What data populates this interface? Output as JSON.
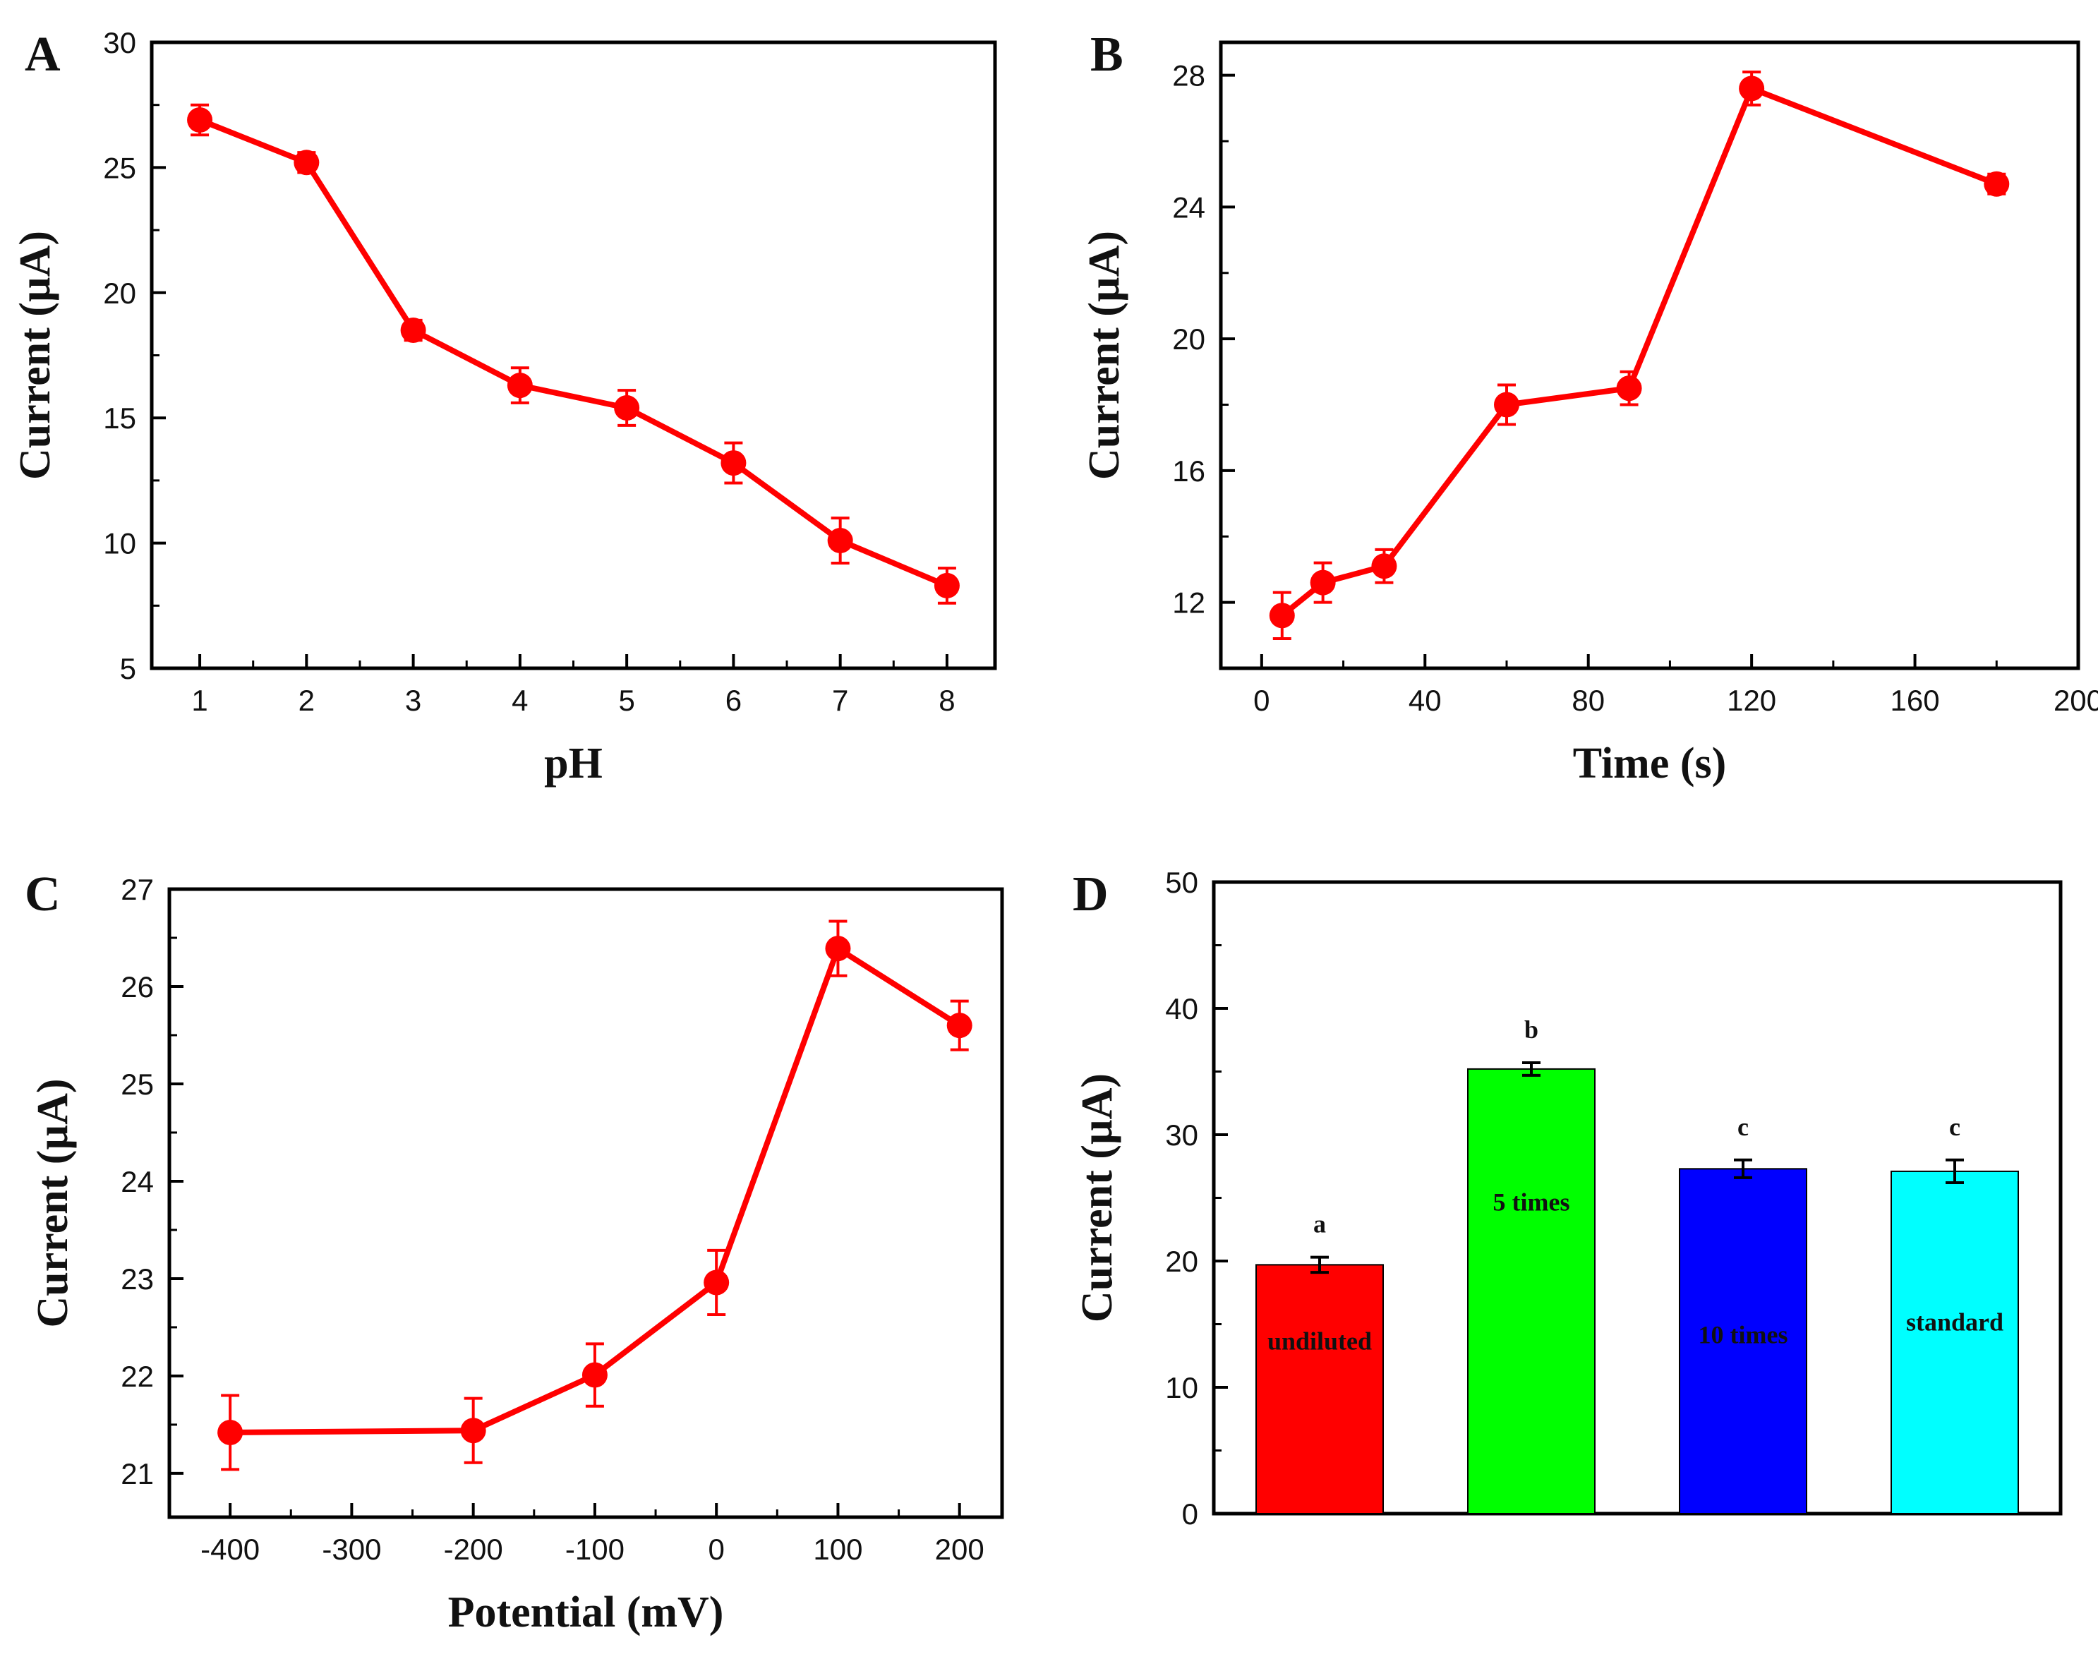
{
  "figure": {
    "colors": {
      "line": "#ff0000",
      "axis": "#000000"
    }
  },
  "chart_data": [
    {
      "id": "A",
      "panel_label": "A",
      "type": "line",
      "xlabel": "pH",
      "ylabel": "Current (µA)",
      "xlim": [
        0.55,
        8.45
      ],
      "ylim": [
        5,
        30
      ],
      "xticks": [
        1,
        2,
        3,
        4,
        5,
        6,
        7,
        8
      ],
      "yticks": [
        5,
        10,
        15,
        20,
        25,
        30
      ],
      "x": [
        1,
        2,
        3,
        4,
        5,
        6,
        7,
        8
      ],
      "y": [
        26.9,
        25.2,
        18.5,
        16.3,
        15.4,
        13.2,
        10.1,
        8.3
      ],
      "err": [
        0.6,
        0.4,
        0.4,
        0.7,
        0.7,
        0.8,
        0.9,
        0.7
      ]
    },
    {
      "id": "B",
      "panel_label": "B",
      "type": "line",
      "xlabel": "Time (s)",
      "ylabel": "Current (µA)",
      "xlim": [
        -10,
        200
      ],
      "ylim": [
        10,
        29
      ],
      "xticks": [
        0,
        40,
        80,
        120,
        160,
        200
      ],
      "yticks": [
        12,
        16,
        20,
        24,
        28
      ],
      "x": [
        5,
        15,
        30,
        60,
        90,
        120,
        180
      ],
      "y": [
        11.6,
        12.6,
        13.1,
        18.0,
        18.5,
        27.6,
        24.7
      ],
      "err": [
        0.7,
        0.6,
        0.5,
        0.6,
        0.5,
        0.5,
        0.3
      ]
    },
    {
      "id": "C",
      "panel_label": "C",
      "type": "line",
      "xlabel": "Potential (mV)",
      "ylabel": "Current (µA)",
      "xlim": [
        -450,
        235
      ],
      "ylim": [
        20.55,
        27
      ],
      "xticks": [
        -400,
        -300,
        -200,
        -100,
        0,
        100,
        200
      ],
      "yticks": [
        21,
        22,
        23,
        24,
        25,
        26,
        27
      ],
      "x": [
        -400,
        -200,
        -100,
        0,
        100,
        200
      ],
      "y": [
        21.42,
        21.44,
        22.01,
        22.96,
        26.39,
        25.6
      ],
      "err": [
        0.38,
        0.33,
        0.32,
        0.33,
        0.28,
        0.25
      ]
    },
    {
      "id": "D",
      "panel_label": "D",
      "type": "bar",
      "xlabel": "",
      "ylabel": "Current (µA)",
      "xlim": [
        -0.5,
        3.5
      ],
      "ylim": [
        0,
        50
      ],
      "yticks": [
        0,
        10,
        20,
        30,
        40,
        50
      ],
      "categories": [
        "undiluted",
        "5 times",
        "10 times",
        "standard"
      ],
      "values": [
        19.7,
        35.2,
        27.3,
        27.1
      ],
      "err": [
        0.6,
        0.5,
        0.7,
        0.9
      ],
      "significance": [
        "a",
        "b",
        "c",
        "c"
      ],
      "bar_colors": [
        "#ff0000",
        "#00ff00",
        "#0000ff",
        "#00ffff"
      ],
      "label_y": [
        13,
        24,
        13.5,
        14.5
      ]
    }
  ]
}
